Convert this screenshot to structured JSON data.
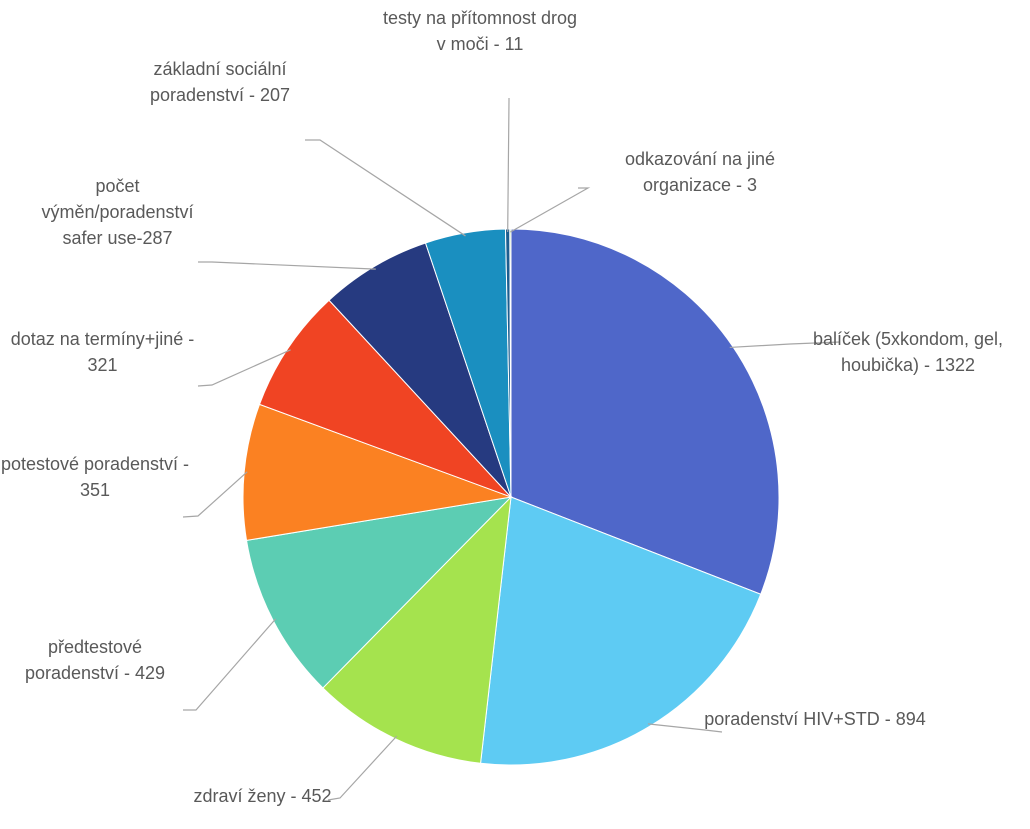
{
  "chart_data": {
    "type": "pie",
    "categories": [
      "balíček (5xkondom, gel, houbička) - 1322",
      "poradenství HIV+STD - 894",
      "zdraví ženy - 452",
      "předtestové poradenství - 429",
      "potestové poradenství - 351",
      "dotaz na termíny+jiné - 321",
      "počet výměn/poradenství safer use-287",
      "základní sociální poradenství - 207",
      "testy na přítomnost drog v moči - 11",
      "odkazování na jiné organizace - 3"
    ],
    "values": [
      1322,
      894,
      452,
      429,
      351,
      321,
      287,
      207,
      11,
      3
    ],
    "colors": [
      "#4f67c9",
      "#5ecbf3",
      "#a5e34e",
      "#5ccdb3",
      "#fb8122",
      "#f04423",
      "#263a80",
      "#1a8fc0",
      "#1d5d8f",
      "#7db73a"
    ]
  }
}
